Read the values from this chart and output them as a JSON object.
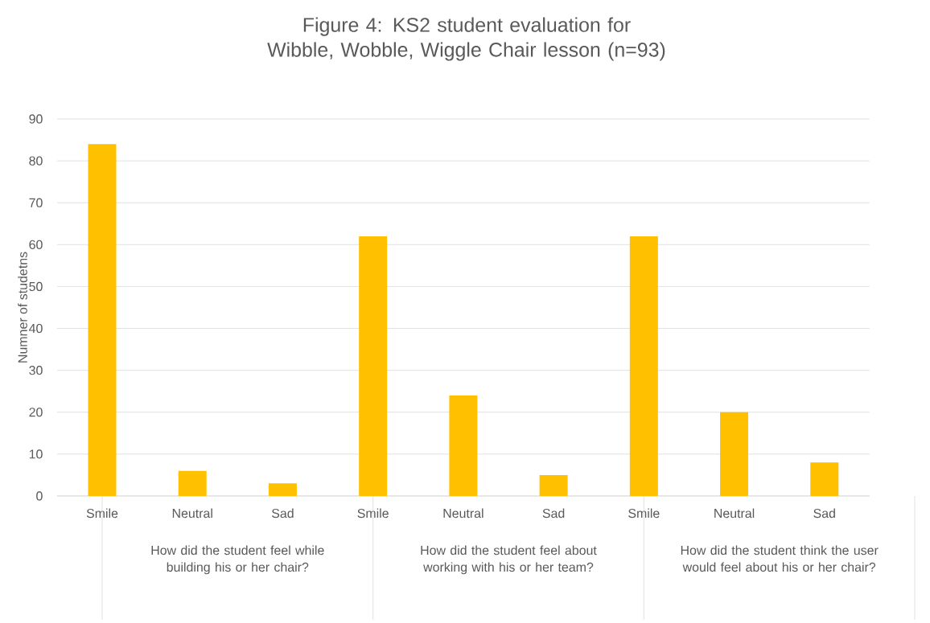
{
  "chart_data": {
    "type": "bar",
    "title": "Figure 4: KS2 student evaluation for Wibble, Wobble, Wiggle Chair lesson (n=93)",
    "ylabel": "Numner of studetns",
    "categories": [
      "Smile",
      "Neutral",
      "Sad",
      "Smile",
      "Neutral",
      "Sad",
      "Smile",
      "Neutral",
      "Sad"
    ],
    "values": [
      84,
      6,
      3,
      62,
      24,
      5,
      62,
      20,
      8
    ],
    "color": "#ffc000",
    "ylim": [
      0,
      90
    ],
    "yticks": [
      0,
      10,
      20,
      30,
      40,
      50,
      60,
      70,
      80,
      90
    ],
    "grid": "y",
    "annotations": [
      "How did the student feel while building his or her chair?",
      "How did the student feel about working with his or her team?",
      "How did the student think the user would feel about his or her chair?"
    ]
  }
}
